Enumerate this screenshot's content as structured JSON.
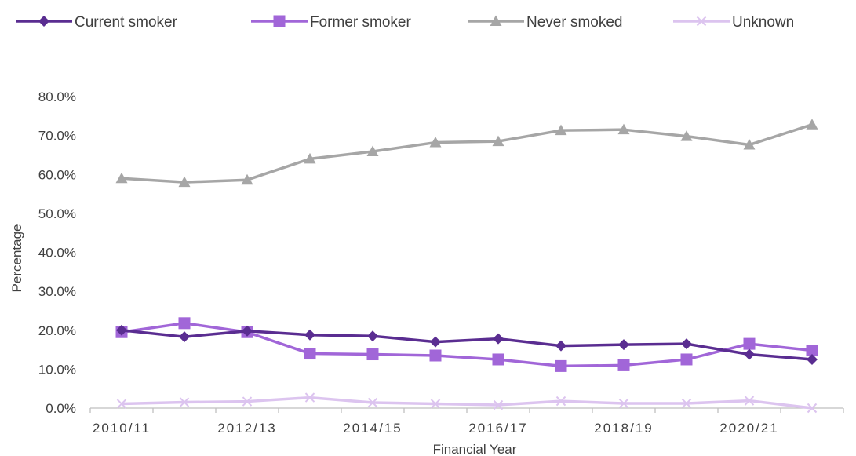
{
  "chart_data": {
    "type": "line",
    "title": "",
    "xlabel": "Financial Year",
    "ylabel": "Percentage",
    "ylim": [
      0,
      80
    ],
    "y_ticks": [
      "0.0%",
      "10.0%",
      "20.0%",
      "30.0%",
      "40.0%",
      "50.0%",
      "60.0%",
      "70.0%",
      "80.0%"
    ],
    "x_tick_labels": [
      "2010/11",
      "2012/13",
      "2014/15",
      "2016/17",
      "2018/19",
      "2020/21"
    ],
    "categories": [
      "2010/11",
      "2011/12",
      "2012/13",
      "2013/14",
      "2014/15",
      "2015/16",
      "2016/17",
      "2017/18",
      "2018/19",
      "2019/20",
      "2020/21",
      "2021/22"
    ],
    "legend_position": "top",
    "grid": false,
    "series": [
      {
        "name": "Current smoker",
        "color": "#5a2d91",
        "marker": "diamond",
        "values": [
          20.0,
          18.3,
          19.8,
          18.8,
          18.5,
          17.0,
          17.8,
          16.0,
          16.3,
          16.5,
          13.8,
          12.5
        ]
      },
      {
        "name": "Former smoker",
        "color": "#a166d8",
        "marker": "square",
        "values": [
          19.5,
          21.8,
          19.5,
          14.0,
          13.8,
          13.5,
          12.5,
          10.8,
          11.0,
          12.5,
          16.5,
          14.8
        ]
      },
      {
        "name": "Never smoked",
        "color": "#a6a6a6",
        "marker": "triangle",
        "values": [
          59.0,
          58.0,
          58.6,
          64.0,
          65.9,
          68.2,
          68.5,
          71.3,
          71.5,
          69.8,
          67.6,
          72.8
        ]
      },
      {
        "name": "Unknown",
        "color": "#dcc4ef",
        "marker": "x",
        "values": [
          1.1,
          1.5,
          1.7,
          2.7,
          1.4,
          1.1,
          0.8,
          1.8,
          1.2,
          1.2,
          1.9,
          0.0
        ]
      }
    ]
  }
}
